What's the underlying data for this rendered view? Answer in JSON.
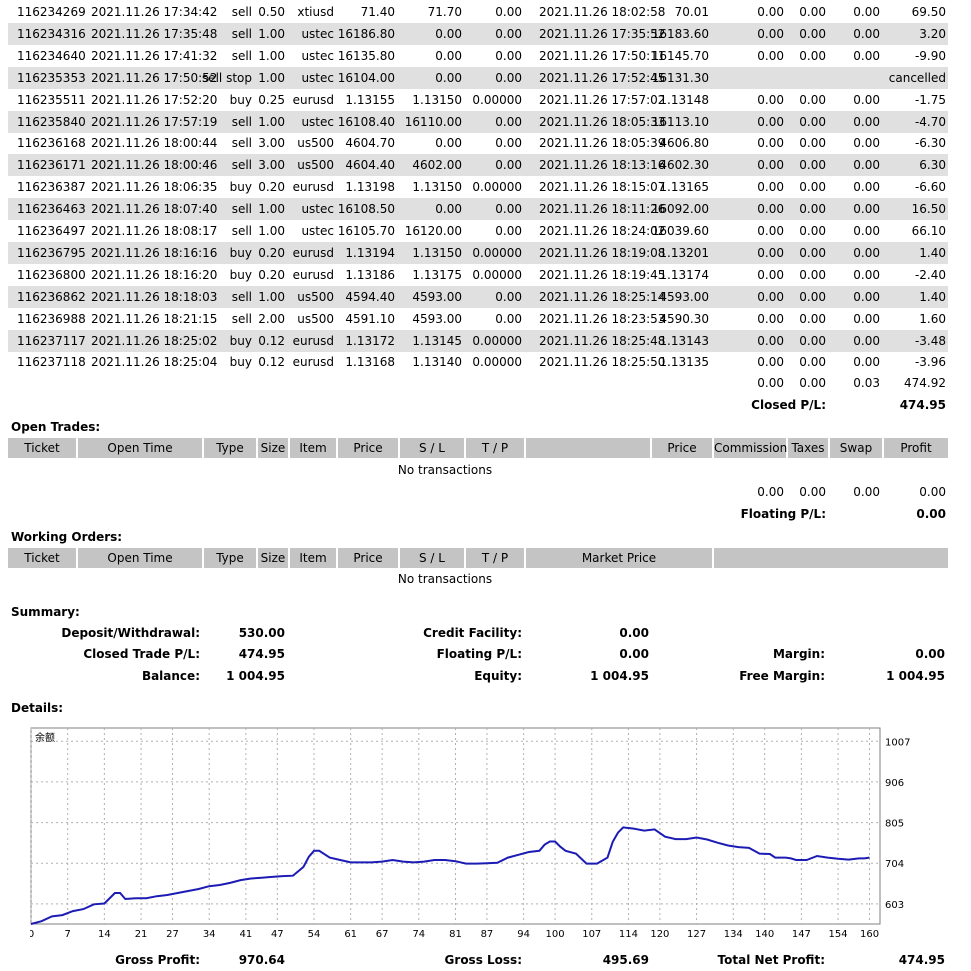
{
  "closed_trades": [
    {
      "ticket": "116234269",
      "open_time": "2021.11.26 17:34:42",
      "type": "sell",
      "size": "0.50",
      "item": "xtiusd",
      "price": "71.40",
      "sl": "71.70",
      "tp": "0.00",
      "close_time": "2021.11.26 18:02:58",
      "close_price": "70.01",
      "commission": "0.00",
      "taxes": "0.00",
      "swap": "0.00",
      "profit": "69.50"
    },
    {
      "ticket": "116234316",
      "open_time": "2021.11.26 17:35:48",
      "type": "sell",
      "size": "1.00",
      "item": "ustec",
      "price": "16186.80",
      "sl": "0.00",
      "tp": "0.00",
      "close_time": "2021.11.26 17:35:52",
      "close_price": "16183.60",
      "commission": "0.00",
      "taxes": "0.00",
      "swap": "0.00",
      "profit": "3.20"
    },
    {
      "ticket": "116234640",
      "open_time": "2021.11.26 17:41:32",
      "type": "sell",
      "size": "1.00",
      "item": "ustec",
      "price": "16135.80",
      "sl": "0.00",
      "tp": "0.00",
      "close_time": "2021.11.26 17:50:11",
      "close_price": "16145.70",
      "commission": "0.00",
      "taxes": "0.00",
      "swap": "0.00",
      "profit": "-9.90"
    },
    {
      "ticket": "116235353",
      "open_time": "2021.11.26 17:50:52",
      "type": "sell stop",
      "size": "1.00",
      "item": "ustec",
      "price": "16104.00",
      "sl": "0.00",
      "tp": "0.00",
      "close_time": "2021.11.26 17:52:45",
      "close_price": "16131.30",
      "commission": "",
      "taxes": "",
      "swap": "",
      "profit": "cancelled"
    },
    {
      "ticket": "116235511",
      "open_time": "2021.11.26 17:52:20",
      "type": "buy",
      "size": "0.25",
      "item": "eurusd",
      "price": "1.13155",
      "sl": "1.13150",
      "tp": "0.00000",
      "close_time": "2021.11.26 17:57:02",
      "close_price": "1.13148",
      "commission": "0.00",
      "taxes": "0.00",
      "swap": "0.00",
      "profit": "-1.75"
    },
    {
      "ticket": "116235840",
      "open_time": "2021.11.26 17:57:19",
      "type": "sell",
      "size": "1.00",
      "item": "ustec",
      "price": "16108.40",
      "sl": "16110.00",
      "tp": "0.00",
      "close_time": "2021.11.26 18:05:33",
      "close_price": "16113.10",
      "commission": "0.00",
      "taxes": "0.00",
      "swap": "0.00",
      "profit": "-4.70"
    },
    {
      "ticket": "116236168",
      "open_time": "2021.11.26 18:00:44",
      "type": "sell",
      "size": "3.00",
      "item": "us500",
      "price": "4604.70",
      "sl": "0.00",
      "tp": "0.00",
      "close_time": "2021.11.26 18:05:39",
      "close_price": "4606.80",
      "commission": "0.00",
      "taxes": "0.00",
      "swap": "0.00",
      "profit": "-6.30"
    },
    {
      "ticket": "116236171",
      "open_time": "2021.11.26 18:00:46",
      "type": "sell",
      "size": "3.00",
      "item": "us500",
      "price": "4604.40",
      "sl": "4602.00",
      "tp": "0.00",
      "close_time": "2021.11.26 18:13:16",
      "close_price": "4602.30",
      "commission": "0.00",
      "taxes": "0.00",
      "swap": "0.00",
      "profit": "6.30"
    },
    {
      "ticket": "116236387",
      "open_time": "2021.11.26 18:06:35",
      "type": "buy",
      "size": "0.20",
      "item": "eurusd",
      "price": "1.13198",
      "sl": "1.13150",
      "tp": "0.00000",
      "close_time": "2021.11.26 18:15:07",
      "close_price": "1.13165",
      "commission": "0.00",
      "taxes": "0.00",
      "swap": "0.00",
      "profit": "-6.60"
    },
    {
      "ticket": "116236463",
      "open_time": "2021.11.26 18:07:40",
      "type": "sell",
      "size": "1.00",
      "item": "ustec",
      "price": "16108.50",
      "sl": "0.00",
      "tp": "0.00",
      "close_time": "2021.11.26 18:11:26",
      "close_price": "16092.00",
      "commission": "0.00",
      "taxes": "0.00",
      "swap": "0.00",
      "profit": "16.50"
    },
    {
      "ticket": "116236497",
      "open_time": "2021.11.26 18:08:17",
      "type": "sell",
      "size": "1.00",
      "item": "ustec",
      "price": "16105.70",
      "sl": "16120.00",
      "tp": "0.00",
      "close_time": "2021.11.26 18:24:02",
      "close_price": "16039.60",
      "commission": "0.00",
      "taxes": "0.00",
      "swap": "0.00",
      "profit": "66.10"
    },
    {
      "ticket": "116236795",
      "open_time": "2021.11.26 18:16:16",
      "type": "buy",
      "size": "0.20",
      "item": "eurusd",
      "price": "1.13194",
      "sl": "1.13150",
      "tp": "0.00000",
      "close_time": "2021.11.26 18:19:08",
      "close_price": "1.13201",
      "commission": "0.00",
      "taxes": "0.00",
      "swap": "0.00",
      "profit": "1.40"
    },
    {
      "ticket": "116236800",
      "open_time": "2021.11.26 18:16:20",
      "type": "buy",
      "size": "0.20",
      "item": "eurusd",
      "price": "1.13186",
      "sl": "1.13175",
      "tp": "0.00000",
      "close_time": "2021.11.26 18:19:45",
      "close_price": "1.13174",
      "commission": "0.00",
      "taxes": "0.00",
      "swap": "0.00",
      "profit": "-2.40"
    },
    {
      "ticket": "116236862",
      "open_time": "2021.11.26 18:18:03",
      "type": "sell",
      "size": "1.00",
      "item": "us500",
      "price": "4594.40",
      "sl": "4593.00",
      "tp": "0.00",
      "close_time": "2021.11.26 18:25:14",
      "close_price": "4593.00",
      "commission": "0.00",
      "taxes": "0.00",
      "swap": "0.00",
      "profit": "1.40"
    },
    {
      "ticket": "116236988",
      "open_time": "2021.11.26 18:21:15",
      "type": "sell",
      "size": "2.00",
      "item": "us500",
      "price": "4591.10",
      "sl": "4593.00",
      "tp": "0.00",
      "close_time": "2021.11.26 18:23:53",
      "close_price": "4590.30",
      "commission": "0.00",
      "taxes": "0.00",
      "swap": "0.00",
      "profit": "1.60"
    },
    {
      "ticket": "116237117",
      "open_time": "2021.11.26 18:25:02",
      "type": "buy",
      "size": "0.12",
      "item": "eurusd",
      "price": "1.13172",
      "sl": "1.13145",
      "tp": "0.00000",
      "close_time": "2021.11.26 18:25:48",
      "close_price": "1.13143",
      "commission": "0.00",
      "taxes": "0.00",
      "swap": "0.00",
      "profit": "-3.48"
    },
    {
      "ticket": "116237118",
      "open_time": "2021.11.26 18:25:04",
      "type": "buy",
      "size": "0.12",
      "item": "eurusd",
      "price": "1.13168",
      "sl": "1.13140",
      "tp": "0.00000",
      "close_time": "2021.11.26 18:25:50",
      "close_price": "1.13135",
      "commission": "0.00",
      "taxes": "0.00",
      "swap": "0.00",
      "profit": "-3.96"
    }
  ],
  "closed_totals": {
    "commission": "0.00",
    "taxes": "0.00",
    "swap": "0.03",
    "profit": "474.92",
    "label": "Closed P/L:",
    "pl": "474.95"
  },
  "open_trades": {
    "title": "Open Trades:",
    "headers": {
      "ticket": "Ticket",
      "open_time": "Open Time",
      "type": "Type",
      "size": "Size",
      "item": "Item",
      "price": "Price",
      "sl": "S / L",
      "tp": "T / P",
      "price2": "Price",
      "commission": "Commission",
      "taxes": "Taxes",
      "swap": "Swap",
      "profit": "Profit"
    },
    "empty": "No transactions",
    "totals": {
      "commission": "0.00",
      "taxes": "0.00",
      "swap": "0.00",
      "profit": "0.00"
    },
    "floating_label": "Floating P/L:",
    "floating_value": "0.00"
  },
  "working_orders": {
    "title": "Working Orders:",
    "headers": {
      "ticket": "Ticket",
      "open_time": "Open Time",
      "type": "Type",
      "size": "Size",
      "item": "Item",
      "price": "Price",
      "sl": "S / L",
      "tp": "T / P",
      "market_price": "Market Price"
    },
    "empty": "No transactions"
  },
  "summary": {
    "title": "Summary:",
    "deposit_label": "Deposit/Withdrawal:",
    "deposit": "530.00",
    "closed_label": "Closed Trade P/L:",
    "closed": "474.95",
    "balance_label": "Balance:",
    "balance": "1 004.95",
    "credit_label": "Credit Facility:",
    "credit": "0.00",
    "floating_label": "Floating P/L:",
    "floating": "0.00",
    "equity_label": "Equity:",
    "equity": "1 004.95",
    "margin_label": "Margin:",
    "margin": "0.00",
    "free_margin_label": "Free Margin:",
    "free_margin": "1 004.95"
  },
  "details": {
    "title": "Details:"
  },
  "chart_data": {
    "type": "line",
    "legend": "余额",
    "xlim": [
      0,
      162
    ],
    "ylim": [
      553,
      1040
    ],
    "x_ticks": [
      "0",
      "7",
      "14",
      "21",
      "27",
      "34",
      "41",
      "47",
      "54",
      "61",
      "67",
      "74",
      "81",
      "87",
      "94",
      "100",
      "107",
      "114",
      "120",
      "127",
      "134",
      "140",
      "147",
      "154",
      "160"
    ],
    "y_ticks": [
      "603",
      "704",
      "805",
      "906",
      "1007"
    ],
    "series": [
      {
        "color": "#1c1cb4",
        "points": [
          [
            0,
            553
          ],
          [
            2,
            560
          ],
          [
            4,
            572
          ],
          [
            6,
            575
          ],
          [
            8,
            585
          ],
          [
            10,
            590
          ],
          [
            12,
            602
          ],
          [
            14,
            604
          ],
          [
            16,
            630
          ],
          [
            17,
            630
          ],
          [
            18,
            615
          ],
          [
            20,
            617
          ],
          [
            22,
            617
          ],
          [
            24,
            622
          ],
          [
            26,
            625
          ],
          [
            28,
            630
          ],
          [
            30,
            635
          ],
          [
            32,
            640
          ],
          [
            34,
            647
          ],
          [
            36,
            650
          ],
          [
            38,
            655
          ],
          [
            40,
            662
          ],
          [
            42,
            666
          ],
          [
            44,
            668
          ],
          [
            46,
            670
          ],
          [
            48,
            672
          ],
          [
            50,
            673
          ],
          [
            52,
            695
          ],
          [
            53,
            720
          ],
          [
            54,
            735
          ],
          [
            55,
            735
          ],
          [
            57,
            718
          ],
          [
            59,
            712
          ],
          [
            61,
            706
          ],
          [
            63,
            706
          ],
          [
            65,
            706
          ],
          [
            67,
            708
          ],
          [
            69,
            712
          ],
          [
            71,
            708
          ],
          [
            73,
            706
          ],
          [
            75,
            708
          ],
          [
            77,
            712
          ],
          [
            79,
            712
          ],
          [
            81,
            709
          ],
          [
            83,
            703
          ],
          [
            85,
            703
          ],
          [
            87,
            704
          ],
          [
            89,
            705
          ],
          [
            91,
            718
          ],
          [
            93,
            725
          ],
          [
            95,
            732
          ],
          [
            97,
            735
          ],
          [
            98,
            750
          ],
          [
            99,
            758
          ],
          [
            100,
            758
          ],
          [
            101,
            745
          ],
          [
            102,
            735
          ],
          [
            104,
            728
          ],
          [
            106,
            703
          ],
          [
            108,
            703
          ],
          [
            110,
            718
          ],
          [
            111,
            757
          ],
          [
            112,
            780
          ],
          [
            113,
            793
          ],
          [
            115,
            790
          ],
          [
            117,
            785
          ],
          [
            119,
            788
          ],
          [
            121,
            770
          ],
          [
            123,
            764
          ],
          [
            125,
            764
          ],
          [
            127,
            768
          ],
          [
            129,
            763
          ],
          [
            131,
            755
          ],
          [
            133,
            748
          ],
          [
            135,
            744
          ],
          [
            137,
            742
          ],
          [
            139,
            728
          ],
          [
            141,
            727
          ],
          [
            142,
            718
          ],
          [
            144,
            718
          ],
          [
            145,
            716
          ],
          [
            146,
            712
          ],
          [
            148,
            712
          ],
          [
            150,
            722
          ],
          [
            152,
            718
          ],
          [
            154,
            715
          ],
          [
            156,
            713
          ],
          [
            158,
            716
          ],
          [
            159,
            716
          ],
          [
            160,
            718
          ]
        ]
      }
    ]
  },
  "footer": {
    "gross_profit_label": "Gross Profit:",
    "gross_profit": "970.64",
    "gross_loss_label": "Gross Loss:",
    "gross_loss": "495.69",
    "net_label": "Total Net Profit:",
    "net": "474.95"
  }
}
